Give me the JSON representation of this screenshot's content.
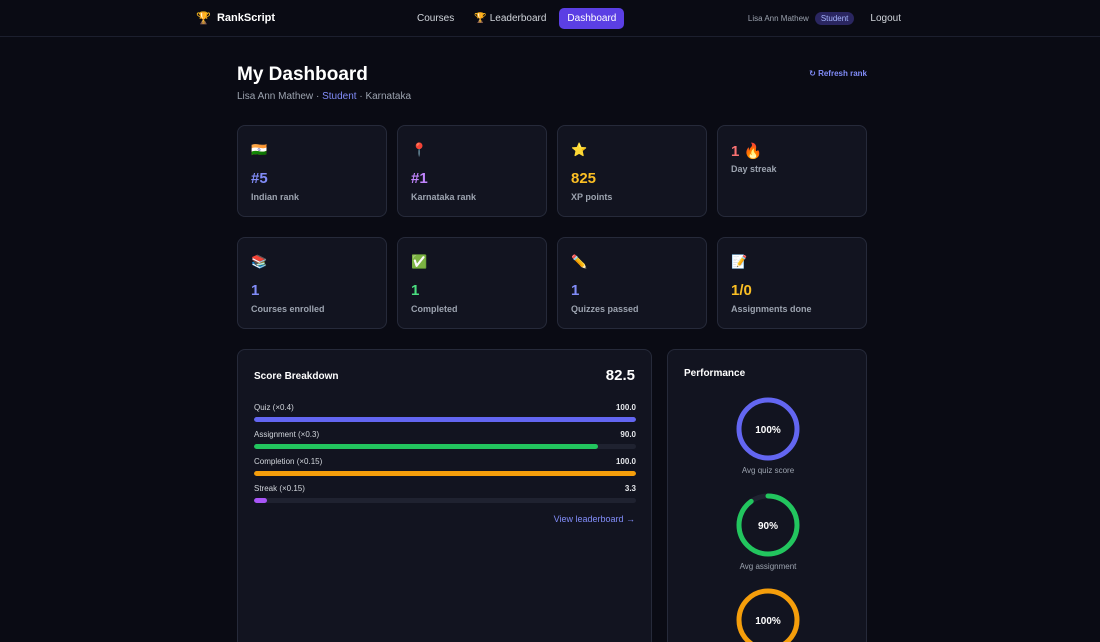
{
  "nav": {
    "brand": "RankScript",
    "links": [
      "Courses",
      "Leaderboard",
      "Dashboard"
    ],
    "user": "Lisa Ann Mathew",
    "role": "Student",
    "logout": "Logout"
  },
  "header": {
    "title": "My Dashboard",
    "name": "Lisa Ann Mathew",
    "role": "Student",
    "state": "Karnataka",
    "refresh": "↻ Refresh rank"
  },
  "stats_row1": [
    {
      "emoji": "🇮🇳",
      "value": "#5",
      "label": "Indian rank",
      "color": "#818cf8"
    },
    {
      "emoji": "📍",
      "value": "#1",
      "label": "Karnataka rank",
      "color": "#c084fc"
    },
    {
      "emoji": "⭐",
      "value": "825",
      "label": "XP points",
      "color": "#fbbf24"
    },
    {
      "emoji": "🔥",
      "value": "1",
      "label": "Day streak",
      "color": "#f87171"
    }
  ],
  "stats_row2": [
    {
      "emoji": "📚",
      "value": "1",
      "label": "Courses enrolled",
      "color": "#818cf8"
    },
    {
      "emoji": "✅",
      "value": "1",
      "label": "Completed",
      "color": "#4ade80"
    },
    {
      "emoji": "✏️",
      "value": "1",
      "label": "Quizzes passed",
      "color": "#818cf8"
    },
    {
      "emoji": "📝",
      "value": "1/0",
      "label": "Assignments done",
      "color": "#fbbf24"
    }
  ],
  "score": {
    "title": "Score Breakdown",
    "total": "82.5",
    "bars": [
      {
        "label": "Quiz (×0.4)",
        "value": "100.0",
        "pct": 100,
        "color": "#6366f1"
      },
      {
        "label": "Assignment (×0.3)",
        "value": "90.0",
        "pct": 90,
        "color": "#22c55e"
      },
      {
        "label": "Completion (×0.15)",
        "value": "100.0",
        "pct": 100,
        "color": "#f59e0b"
      },
      {
        "label": "Streak (×0.15)",
        "value": "3.3",
        "pct": 3.3,
        "color": "#a855f7"
      }
    ],
    "view_link": "View leaderboard →"
  },
  "performance": {
    "title": "Performance",
    "rings": [
      {
        "value": "100%",
        "pct": 100,
        "label": "Avg quiz score",
        "color": "#6366f1"
      },
      {
        "value": "90%",
        "pct": 90,
        "label": "Avg assignment",
        "color": "#22c55e"
      },
      {
        "value": "100%",
        "pct": 100,
        "label": "",
        "color": "#f59e0b"
      }
    ]
  }
}
